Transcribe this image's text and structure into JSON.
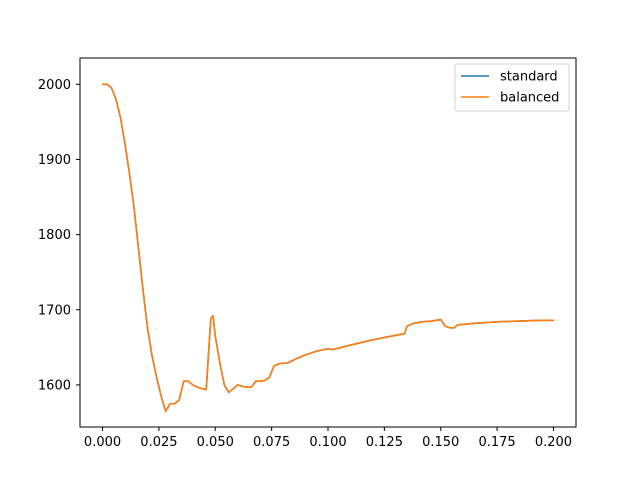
{
  "chart_data": {
    "type": "line",
    "title": "",
    "xlabel": "",
    "ylabel": "",
    "xlim": [
      -0.01,
      0.21
    ],
    "ylim": [
      1544,
      2035
    ],
    "xticks": [
      0.0,
      0.025,
      0.05,
      0.075,
      0.1,
      0.125,
      0.15,
      0.175,
      0.2
    ],
    "xtick_labels": [
      "0.000",
      "0.025",
      "0.050",
      "0.075",
      "0.100",
      "0.125",
      "0.150",
      "0.175",
      "0.200"
    ],
    "yticks": [
      1600,
      1700,
      1800,
      1900,
      2000
    ],
    "ytick_labels": [
      "1600",
      "1700",
      "1800",
      "1900",
      "2000"
    ],
    "grid": false,
    "legend": "top-right",
    "series": [
      {
        "name": "standard",
        "color": "#1f77b4",
        "x": [
          0.0,
          0.002,
          0.004,
          0.006,
          0.008,
          0.01,
          0.012,
          0.014,
          0.016,
          0.018,
          0.02,
          0.022,
          0.024,
          0.026,
          0.028,
          0.03,
          0.032,
          0.034,
          0.036,
          0.038,
          0.04,
          0.042,
          0.044,
          0.046,
          0.048,
          0.049,
          0.05,
          0.052,
          0.054,
          0.056,
          0.058,
          0.06,
          0.062,
          0.064,
          0.066,
          0.068,
          0.07,
          0.072,
          0.074,
          0.076,
          0.078,
          0.08,
          0.082,
          0.086,
          0.09,
          0.095,
          0.1,
          0.102,
          0.11,
          0.12,
          0.13,
          0.134,
          0.135,
          0.138,
          0.142,
          0.146,
          0.15,
          0.152,
          0.154,
          0.156,
          0.157,
          0.158,
          0.165,
          0.175,
          0.185,
          0.195,
          0.2
        ],
        "values": [
          2000,
          2000,
          1995,
          1980,
          1955,
          1920,
          1880,
          1835,
          1780,
          1725,
          1675,
          1638,
          1610,
          1585,
          1565,
          1575,
          1575,
          1580,
          1605,
          1605,
          1600,
          1597,
          1595,
          1594,
          1688,
          1692,
          1665,
          1630,
          1600,
          1590,
          1595,
          1600,
          1598,
          1597,
          1597,
          1605,
          1605,
          1606,
          1610,
          1625,
          1628,
          1629,
          1629,
          1635,
          1640,
          1645,
          1648,
          1647,
          1653,
          1660,
          1666,
          1668,
          1678,
          1682,
          1684,
          1685,
          1687,
          1678,
          1676,
          1676,
          1679,
          1680,
          1682,
          1684,
          1685,
          1686,
          1686
        ]
      },
      {
        "name": "balanced",
        "color": "#ff7f0e",
        "x": [
          0.0,
          0.002,
          0.004,
          0.006,
          0.008,
          0.01,
          0.012,
          0.014,
          0.016,
          0.018,
          0.02,
          0.022,
          0.024,
          0.026,
          0.028,
          0.03,
          0.032,
          0.034,
          0.036,
          0.038,
          0.04,
          0.042,
          0.044,
          0.046,
          0.048,
          0.049,
          0.05,
          0.052,
          0.054,
          0.056,
          0.058,
          0.06,
          0.062,
          0.064,
          0.066,
          0.068,
          0.07,
          0.072,
          0.074,
          0.076,
          0.078,
          0.08,
          0.082,
          0.086,
          0.09,
          0.095,
          0.1,
          0.102,
          0.11,
          0.12,
          0.13,
          0.134,
          0.135,
          0.138,
          0.142,
          0.146,
          0.15,
          0.152,
          0.154,
          0.156,
          0.157,
          0.158,
          0.165,
          0.175,
          0.185,
          0.195,
          0.2
        ],
        "values": [
          2000,
          2000,
          1995,
          1980,
          1955,
          1920,
          1880,
          1835,
          1780,
          1725,
          1675,
          1638,
          1610,
          1585,
          1565,
          1575,
          1575,
          1580,
          1605,
          1605,
          1600,
          1597,
          1595,
          1594,
          1688,
          1692,
          1665,
          1630,
          1600,
          1590,
          1595,
          1600,
          1598,
          1597,
          1597,
          1605,
          1605,
          1606,
          1610,
          1625,
          1628,
          1629,
          1629,
          1635,
          1640,
          1645,
          1648,
          1647,
          1653,
          1660,
          1666,
          1668,
          1678,
          1682,
          1684,
          1685,
          1687,
          1678,
          1676,
          1676,
          1679,
          1680,
          1682,
          1684,
          1685,
          1686,
          1686
        ]
      }
    ]
  }
}
